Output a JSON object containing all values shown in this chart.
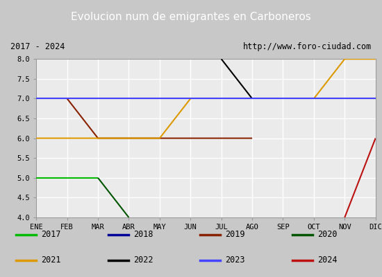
{
  "title": "Evolucion num de emigrantes en Carboneros",
  "subtitle_left": "2017 - 2024",
  "subtitle_right": "http://www.foro-ciudad.com",
  "title_bg_color": "#4f86d8",
  "title_text_color": "#ffffff",
  "plot_bg_color": "#ebebeb",
  "grid_color": "#ffffff",
  "outer_bg_color": "#c8c8c8",
  "months": [
    "ENE",
    "FEB",
    "MAR",
    "ABR",
    "MAY",
    "JUN",
    "JUL",
    "AGO",
    "SEP",
    "OCT",
    "NOV",
    "DIC"
  ],
  "ylim": [
    4.0,
    8.0
  ],
  "yticks": [
    4.0,
    4.5,
    5.0,
    5.5,
    6.0,
    6.5,
    7.0,
    7.5,
    8.0
  ],
  "series": {
    "2017": {
      "color": "#00bb00",
      "data": [
        5,
        5,
        5,
        null,
        null,
        null,
        null,
        null,
        null,
        null,
        null,
        null
      ]
    },
    "2018": {
      "color": "#000099",
      "data": [
        7,
        7,
        7,
        7,
        7,
        7,
        7,
        7,
        7,
        7,
        7,
        7
      ]
    },
    "2019": {
      "color": "#882200",
      "data": [
        null,
        7,
        6,
        6,
        6,
        6,
        6,
        6,
        null,
        null,
        null,
        null
      ]
    },
    "2020": {
      "color": "#005500",
      "data": [
        null,
        null,
        5,
        4,
        null,
        null,
        null,
        null,
        null,
        null,
        null,
        null
      ]
    },
    "2021": {
      "color": "#dd9900",
      "data": [
        6,
        6,
        6,
        6,
        6,
        7,
        null,
        null,
        null,
        7,
        8,
        8
      ]
    },
    "2022": {
      "color": "#000000",
      "data": [
        null,
        null,
        null,
        null,
        null,
        null,
        8,
        7,
        null,
        null,
        null,
        null
      ]
    },
    "2023": {
      "color": "#4444ff",
      "data": [
        7,
        7,
        7,
        7,
        7,
        7,
        7,
        7,
        7,
        7,
        7,
        7
      ]
    },
    "2024": {
      "color": "#bb1111",
      "data": [
        null,
        null,
        null,
        null,
        null,
        null,
        null,
        null,
        null,
        null,
        4,
        6
      ]
    }
  },
  "legend_order": [
    "2017",
    "2018",
    "2019",
    "2020",
    "2021",
    "2022",
    "2023",
    "2024"
  ]
}
